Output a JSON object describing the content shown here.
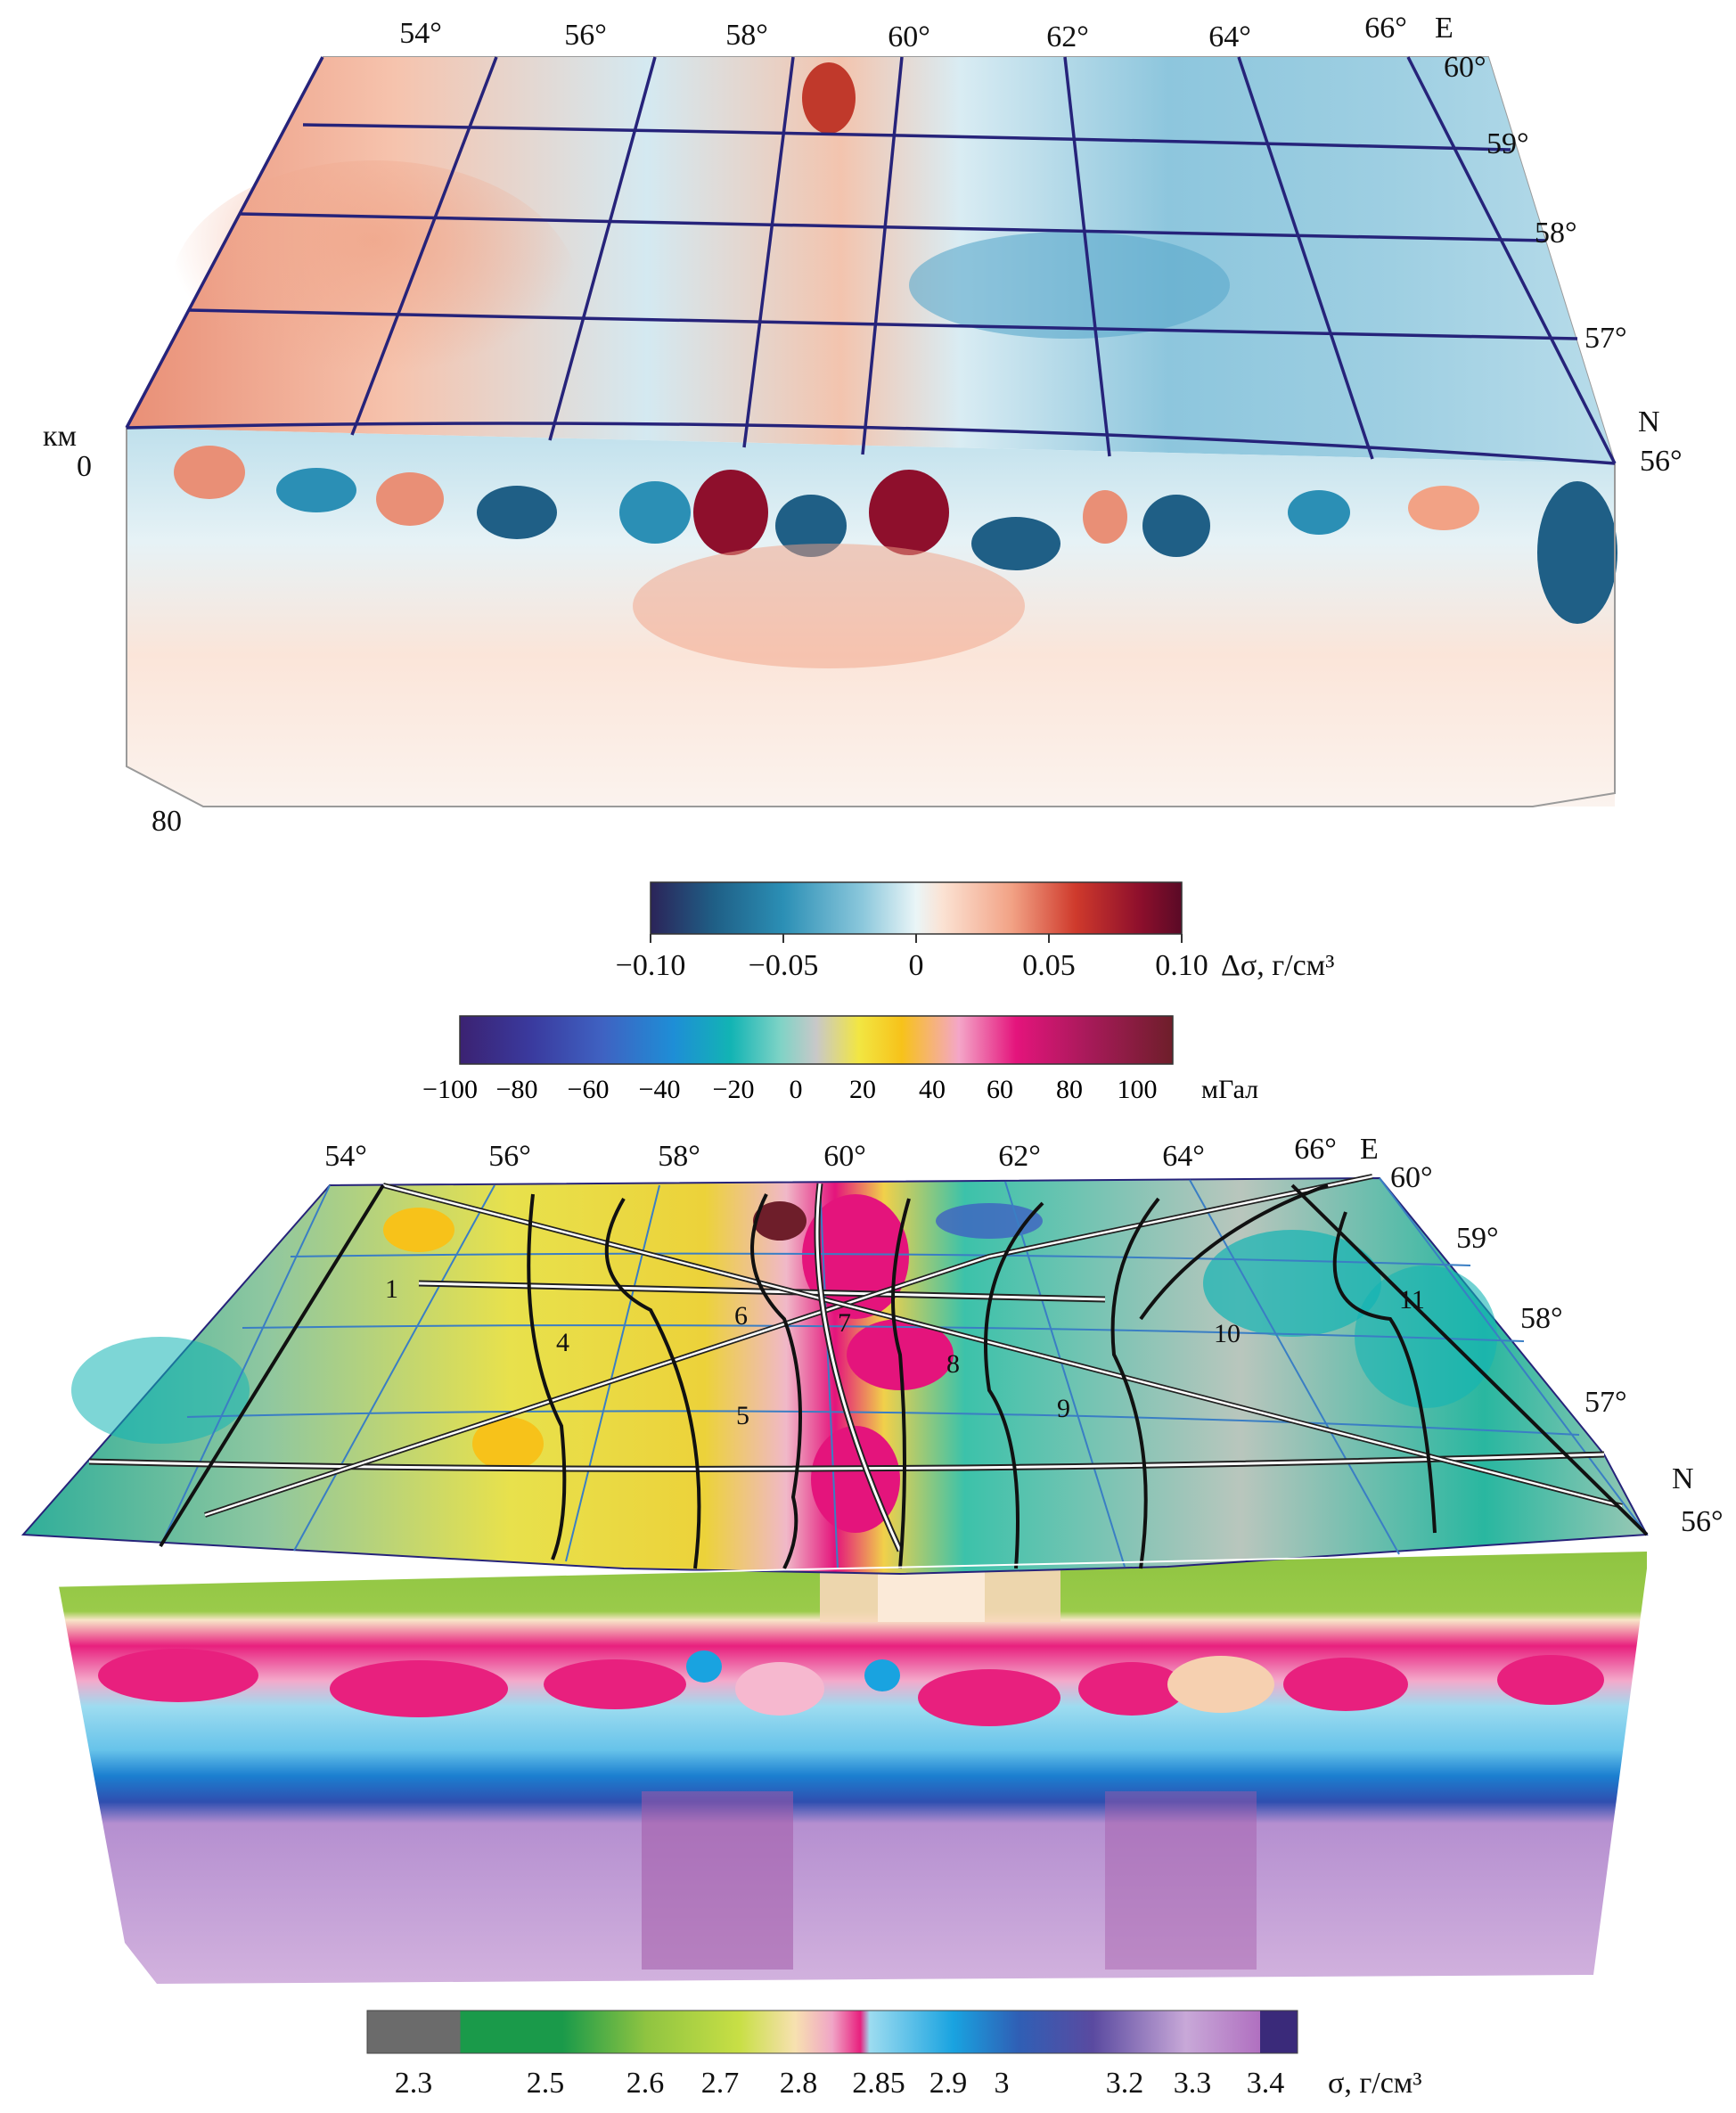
{
  "top_block": {
    "longitudes": [
      "54°",
      "56°",
      "58°",
      "60°",
      "62°",
      "64°",
      "66°"
    ],
    "east_label": "E",
    "latitudes": [
      "60°",
      "59°",
      "58°",
      "57°",
      "56°"
    ],
    "north_label": "N",
    "depth_unit": "км",
    "depth_top": "0",
    "depth_bottom": "80"
  },
  "density_anomaly_scale": {
    "ticks": [
      "−0.10",
      "−0.05",
      "0",
      "0.05",
      "0.10"
    ],
    "unit": "Δσ, г/см³",
    "colors": [
      "#2b2459",
      "#1f5f86",
      "#2b8fb5",
      "#8cc8dc",
      "#eaf5f7",
      "#fbe2d3",
      "#f2a285",
      "#cf3a2c",
      "#8e0f2c",
      "#5a0a26"
    ]
  },
  "gravity_scale": {
    "ticks": [
      "−100",
      "−80",
      "−60",
      "−40",
      "−20",
      "0",
      "20",
      "40",
      "60",
      "80",
      "100"
    ],
    "unit": "мГал",
    "colors": [
      "#3b2272",
      "#3a3a9e",
      "#3f62c2",
      "#1e8ed6",
      "#12b4b4",
      "#7fd3c6",
      "#c8c8c8",
      "#f2e642",
      "#f7c21a",
      "#f4a6c8",
      "#e4147c",
      "#a81a5a",
      "#6e1e2a"
    ]
  },
  "bottom_block": {
    "longitudes": [
      "54°",
      "56°",
      "58°",
      "60°",
      "62°",
      "64°",
      "66°"
    ],
    "east_label": "E",
    "latitudes": [
      "60°",
      "59°",
      "58°",
      "57°",
      "56°"
    ],
    "north_label": "N",
    "zone_numbers": [
      "1",
      "4",
      "5",
      "6",
      "7",
      "8",
      "9",
      "10",
      "11"
    ]
  },
  "density_scale": {
    "ticks": [
      "2.3",
      "2.5",
      "2.6",
      "2.7",
      "2.8",
      "2.85",
      "2.9",
      "3",
      "3.2",
      "3.3",
      "3.4"
    ],
    "unit": "σ, г/см³",
    "colors": [
      "#6b6b6b",
      "#1a9a4a",
      "#8fc441",
      "#c8df45",
      "#f7e1b0",
      "#f0a5c6",
      "#e8207e",
      "#9ddcf0",
      "#19a3e0",
      "#2f5fb5",
      "#5a4aa0",
      "#c8a8d8",
      "#b070c0",
      "#3a2a7a"
    ]
  }
}
